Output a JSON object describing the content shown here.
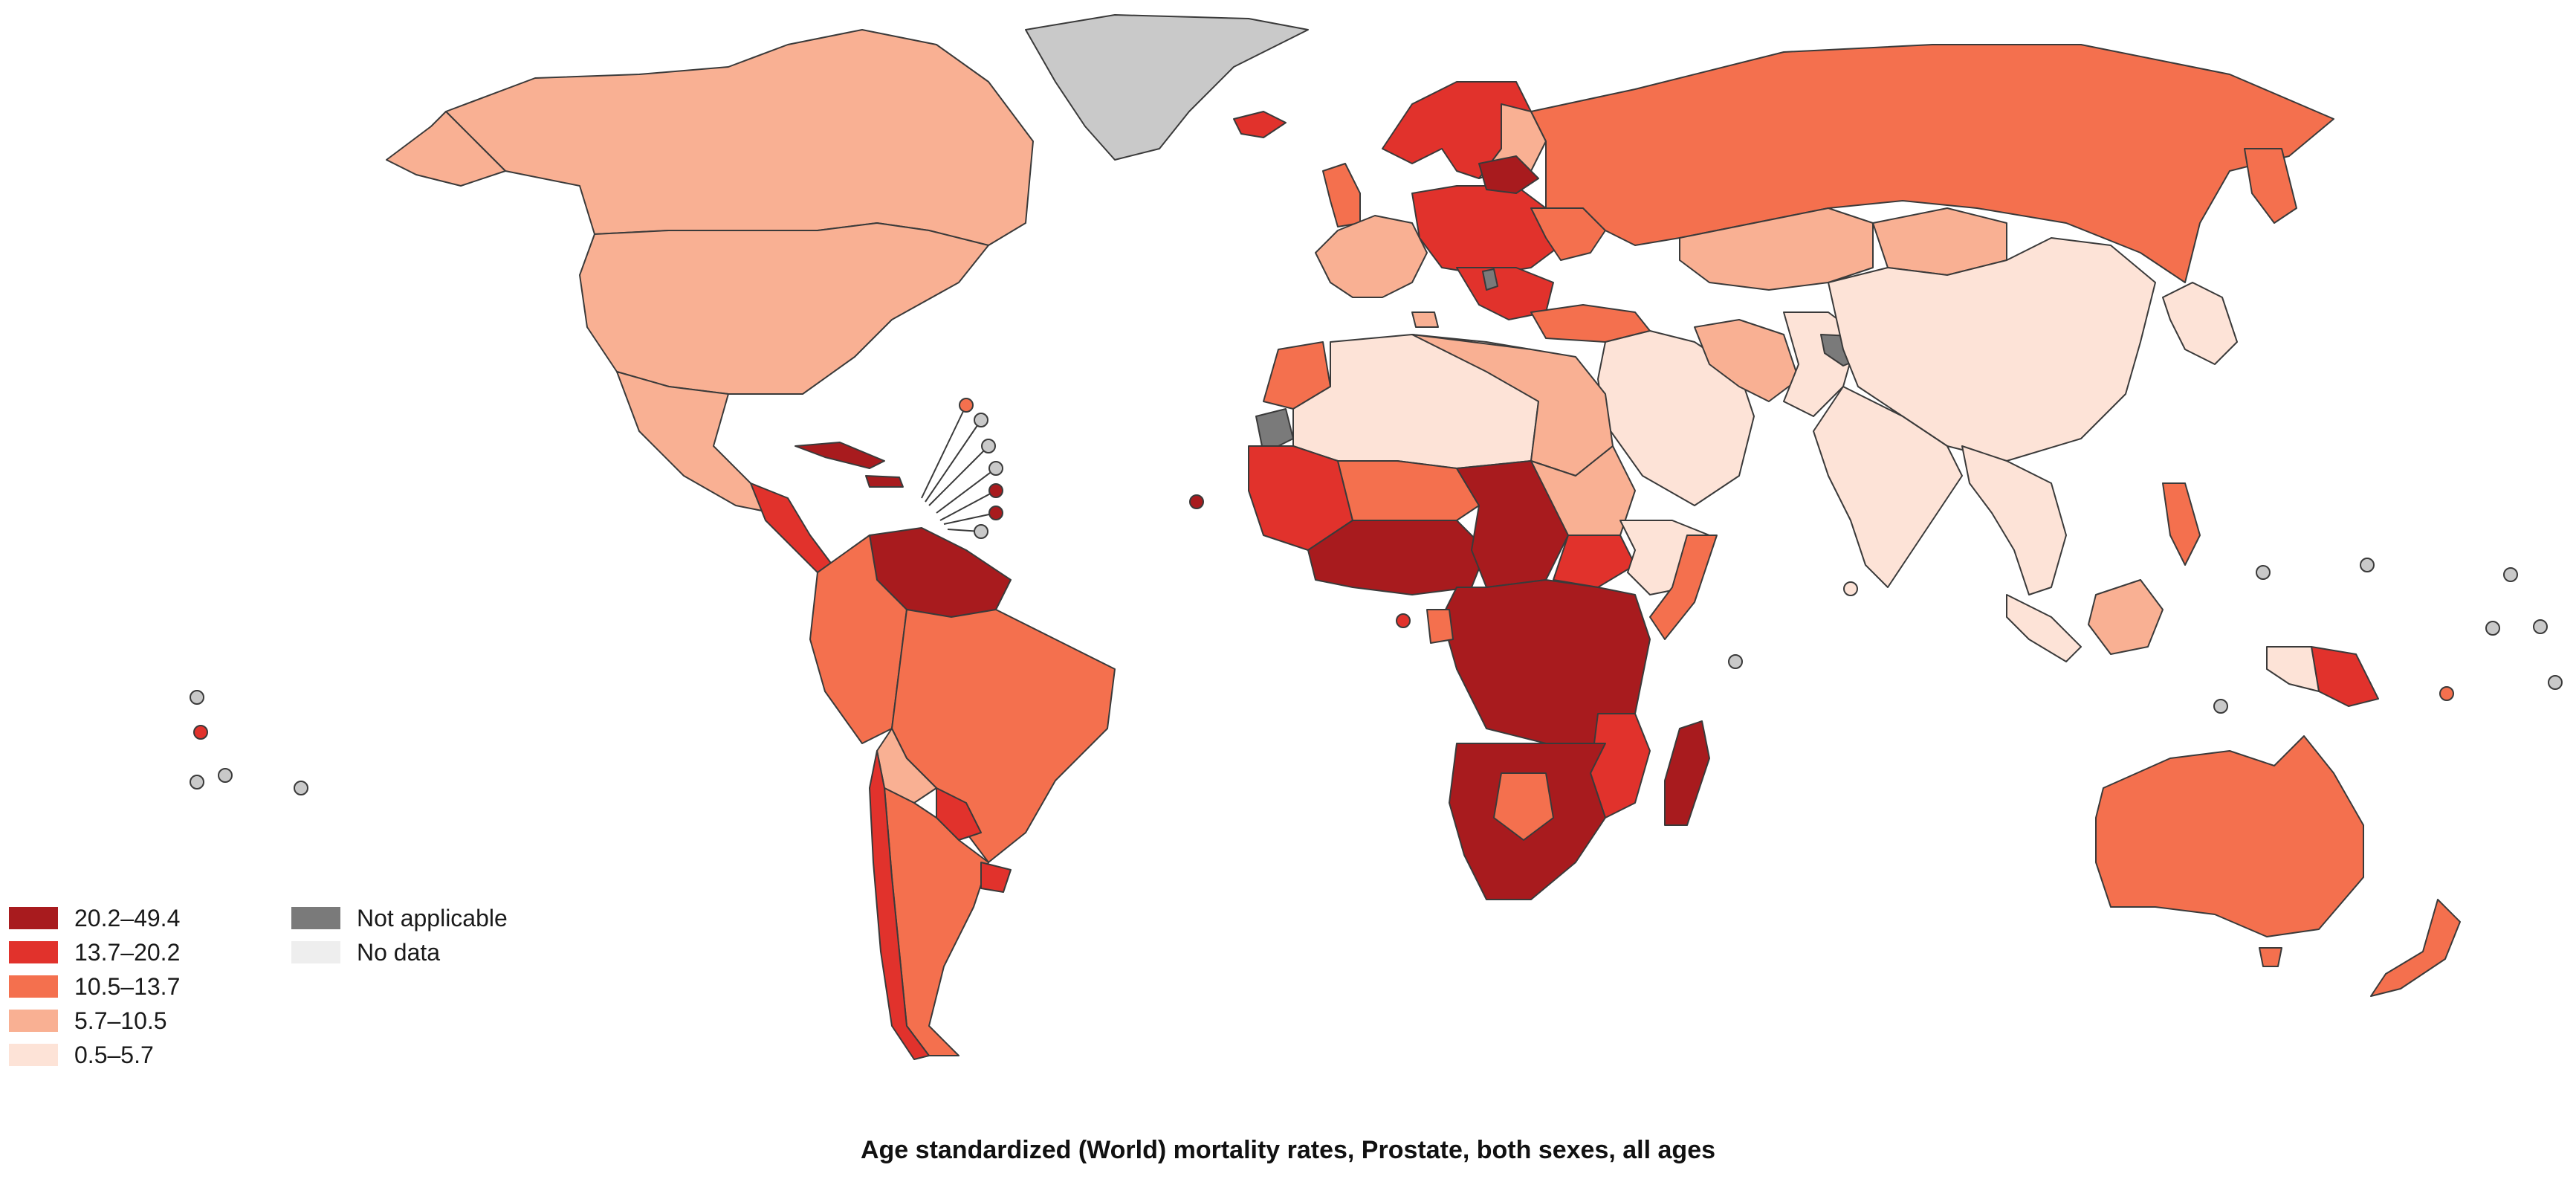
{
  "title": "Age standardized (World) mortality rates, Prostate, both sexes, all ages",
  "legend": {
    "classes": [
      {
        "label": "20.2–49.4",
        "color": "#a81b1e"
      },
      {
        "label": "13.7–20.2",
        "color": "#e1322c"
      },
      {
        "label": "10.5–13.7",
        "color": "#f4704e"
      },
      {
        "label": "5.7–10.5",
        "color": "#f9b093"
      },
      {
        "label": "0.5–5.7",
        "color": "#fde3d7"
      }
    ],
    "extra": [
      {
        "label": "Not applicable",
        "color": "#7a7a7a"
      },
      {
        "label": "No data",
        "color": "#eeeeee"
      }
    ]
  },
  "colors": {
    "greenland": "#c9c9c9",
    "not_applicable": "#7a7a7a",
    "no_data": "#eeeeee",
    "outline": "#3a3a3a"
  }
}
